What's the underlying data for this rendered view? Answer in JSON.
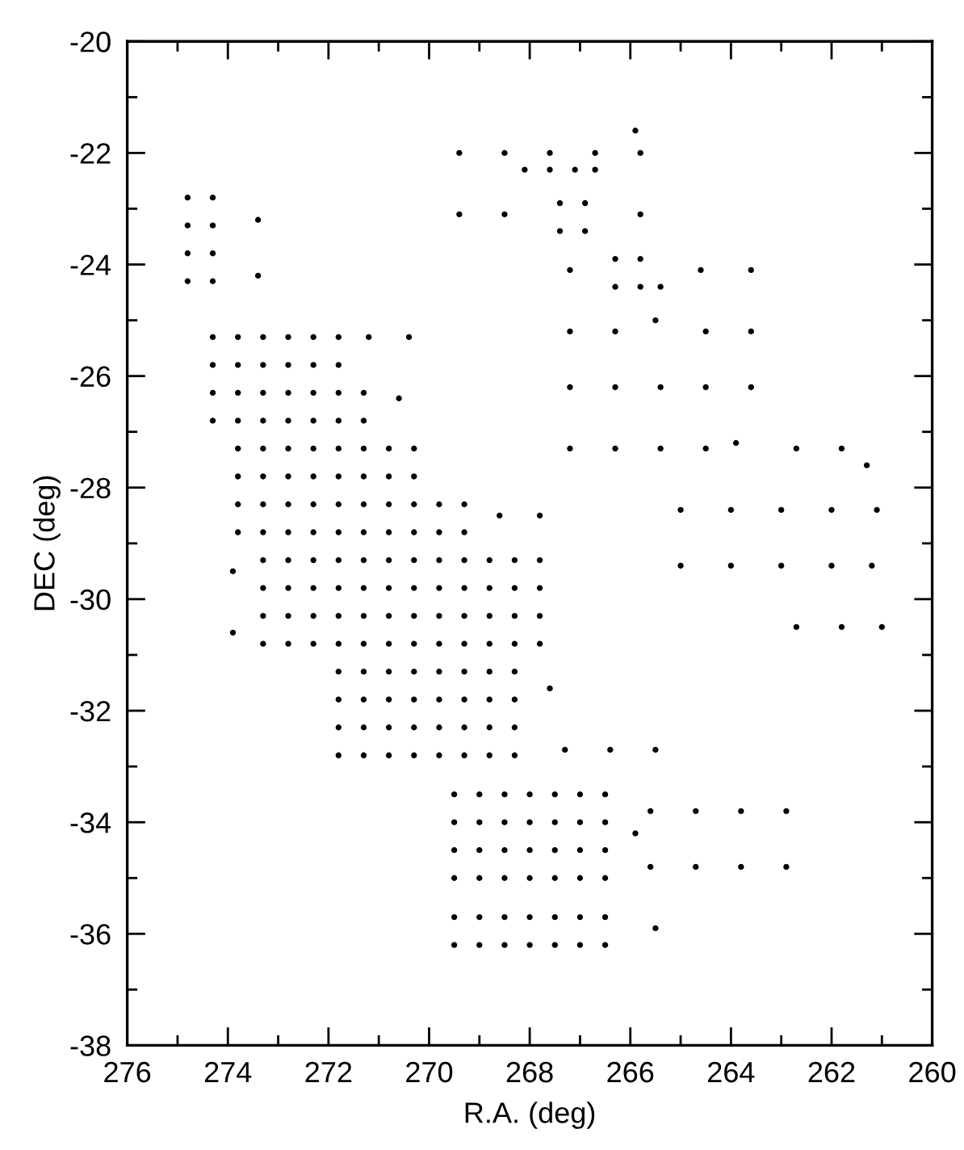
{
  "chart_data": {
    "type": "scatter",
    "xlabel": "R.A. (deg)",
    "ylabel": "DEC (deg)",
    "marker": "circle",
    "xlim": [
      276,
      260
    ],
    "ylim": [
      -38,
      -20
    ],
    "xticks": [
      276,
      {
        "value": 275,
        "label": null
      },
      274,
      {
        "value": 273,
        "label": null
      },
      272,
      {
        "value": 271,
        "label": null
      },
      270,
      {
        "value": 269,
        "label": null
      },
      268,
      {
        "value": 267,
        "label": null
      },
      266,
      {
        "value": 265,
        "label": null
      },
      264,
      {
        "value": 263,
        "label": null
      },
      262,
      {
        "value": 261,
        "label": null
      },
      260
    ],
    "yticks": [
      -38,
      {
        "value": -37,
        "label": null
      },
      -36,
      {
        "value": -35,
        "label": null
      },
      -34,
      {
        "value": -33,
        "label": null
      },
      -32,
      {
        "value": -31,
        "label": null
      },
      -30,
      {
        "value": -29,
        "label": null
      },
      -28,
      {
        "value": -27,
        "label": null
      },
      -26,
      {
        "value": -25,
        "label": null
      },
      -24,
      {
        "value": -23,
        "label": null
      },
      -22,
      {
        "value": -21,
        "label": null
      },
      -20
    ],
    "series": [
      {
        "color": "#000000",
        "x": [
          274.8,
          274.3,
          274.8,
          274.3,
          274.8,
          274.3,
          274.8,
          274.3,
          274.3,
          273.8,
          273.3,
          272.8,
          272.3,
          271.8,
          274.3,
          273.8,
          273.3,
          272.8,
          272.3,
          271.8,
          274.3,
          273.8,
          273.3,
          272.8,
          272.3,
          271.8,
          271.3,
          274.3,
          273.8,
          273.3,
          272.8,
          272.3,
          271.8,
          271.3,
          273.8,
          273.3,
          272.8,
          272.3,
          271.8,
          271.3,
          270.8,
          270.3,
          273.8,
          273.3,
          272.8,
          272.3,
          271.8,
          271.3,
          270.8,
          270.3,
          273.8,
          273.3,
          272.8,
          272.3,
          271.8,
          271.3,
          270.8,
          270.3,
          269.8,
          269.3,
          273.8,
          273.3,
          272.8,
          272.3,
          271.8,
          271.3,
          270.8,
          270.3,
          269.8,
          269.3
        ],
        "values": [
          -22.8,
          -22.8,
          -23.3,
          -23.3,
          -23.8,
          -23.8,
          -24.3,
          -24.3,
          -25.3,
          -25.3,
          -25.3,
          -25.3,
          -25.3,
          -25.3,
          -25.8,
          -25.8,
          -25.8,
          -25.8,
          -25.8,
          -25.8,
          -26.3,
          -26.3,
          -26.3,
          -26.3,
          -26.3,
          -26.3,
          -26.3,
          -26.8,
          -26.8,
          -26.8,
          -26.8,
          -26.8,
          -26.8,
          -26.8,
          -27.3,
          -27.3,
          -27.3,
          -27.3,
          -27.3,
          -27.3,
          -27.3,
          -27.3,
          -27.8,
          -27.8,
          -27.8,
          -27.8,
          -27.8,
          -27.8,
          -27.8,
          -27.8,
          -28.3,
          -28.3,
          -28.3,
          -28.3,
          -28.3,
          -28.3,
          -28.3,
          -28.3,
          -28.3,
          -28.3,
          -28.8,
          -28.8,
          -28.8,
          -28.8,
          -28.8,
          -28.8,
          -28.8,
          -28.8,
          -28.8,
          -28.8
        ]
      },
      {
        "color": "#000000",
        "x": [
          273.3,
          272.8,
          272.3,
          271.8,
          271.3,
          270.8,
          270.3,
          269.8,
          269.3,
          268.8,
          268.3,
          267.8,
          273.3,
          272.8,
          272.3,
          271.8,
          271.3,
          270.8,
          270.3,
          269.8,
          269.3,
          268.8,
          268.3,
          267.8,
          273.3,
          272.8,
          272.3,
          271.8,
          271.3,
          270.8,
          270.3,
          269.8,
          269.3,
          268.8,
          268.3,
          267.8,
          273.3,
          272.8,
          272.3,
          271.8,
          271.3,
          270.8,
          270.3,
          269.8,
          269.3,
          268.8,
          268.3,
          267.8,
          271.8,
          271.3,
          270.8,
          270.3,
          269.8,
          269.3,
          268.8,
          268.3,
          271.8,
          271.3,
          270.8,
          270.3,
          269.8,
          269.3,
          268.8,
          268.3,
          271.8,
          271.3,
          270.8,
          270.3,
          269.8,
          269.3,
          268.8,
          268.3,
          271.8,
          271.3,
          270.8,
          270.3,
          269.8,
          269.3,
          268.8,
          268.3
        ],
        "values": [
          -29.3,
          -29.3,
          -29.3,
          -29.3,
          -29.3,
          -29.3,
          -29.3,
          -29.3,
          -29.3,
          -29.3,
          -29.3,
          -29.3,
          -29.8,
          -29.8,
          -29.8,
          -29.8,
          -29.8,
          -29.8,
          -29.8,
          -29.8,
          -29.8,
          -29.8,
          -29.8,
          -29.8,
          -30.3,
          -30.3,
          -30.3,
          -30.3,
          -30.3,
          -30.3,
          -30.3,
          -30.3,
          -30.3,
          -30.3,
          -30.3,
          -30.3,
          -30.8,
          -30.8,
          -30.8,
          -30.8,
          -30.8,
          -30.8,
          -30.8,
          -30.8,
          -30.8,
          -30.8,
          -30.8,
          -30.8,
          -31.3,
          -31.3,
          -31.3,
          -31.3,
          -31.3,
          -31.3,
          -31.3,
          -31.3,
          -31.8,
          -31.8,
          -31.8,
          -31.8,
          -31.8,
          -31.8,
          -31.8,
          -31.8,
          -32.3,
          -32.3,
          -32.3,
          -32.3,
          -32.3,
          -32.3,
          -32.3,
          -32.3,
          -32.8,
          -32.8,
          -32.8,
          -32.8,
          -32.8,
          -32.8,
          -32.8,
          -32.8
        ]
      },
      {
        "color": "#000000",
        "x": [
          269.5,
          269.0,
          268.5,
          268.0,
          267.5,
          267.0,
          266.5,
          269.5,
          269.0,
          268.5,
          268.0,
          267.5,
          267.0,
          266.5,
          269.5,
          269.0,
          268.5,
          268.0,
          267.5,
          267.0,
          266.5,
          269.5,
          269.0,
          268.5,
          268.0,
          267.5,
          267.0,
          266.5,
          269.5,
          269.0,
          268.5,
          268.0,
          267.5,
          267.0,
          266.5,
          269.5,
          269.0,
          268.5,
          268.0,
          267.5,
          267.0,
          266.5
        ],
        "values": [
          -33.5,
          -33.5,
          -33.5,
          -33.5,
          -33.5,
          -33.5,
          -33.5,
          -34.0,
          -34.0,
          -34.0,
          -34.0,
          -34.0,
          -34.0,
          -34.0,
          -34.5,
          -34.5,
          -34.5,
          -34.5,
          -34.5,
          -34.5,
          -34.5,
          -35.0,
          -35.0,
          -35.0,
          -35.0,
          -35.0,
          -35.0,
          -35.0,
          -35.7,
          -35.7,
          -35.7,
          -35.7,
          -35.7,
          -35.7,
          -35.7,
          -36.2,
          -36.2,
          -36.2,
          -36.2,
          -36.2,
          -36.2,
          -36.2
        ]
      },
      {
        "color": "#000000",
        "x": [
          273.4,
          273.4,
          271.2,
          270.4,
          270.6,
          268.6,
          267.8,
          273.9,
          273.9,
          267.6,
          267.3,
          266.4,
          265.5,
          265.6,
          264.7,
          263.8,
          262.9,
          265.6,
          264.7,
          263.8,
          262.9,
          265.9,
          265.5,
          269.4,
          268.5,
          267.6,
          266.7,
          265.8,
          265.9,
          268.1,
          267.6,
          267.1,
          266.7,
          269.4,
          268.5,
          265.8,
          267.4,
          266.9,
          267.4,
          266.9,
          267.2,
          264.6,
          263.6,
          266.3,
          265.8,
          266.3,
          265.8,
          265.4,
          267.2,
          266.3,
          265.5,
          264.5,
          263.6,
          267.2,
          266.3,
          265.4,
          264.5,
          263.6,
          267.2,
          266.3,
          265.4,
          264.5,
          263.9,
          262.7,
          261.8,
          261.3,
          265.0,
          264.0,
          263.0,
          262.0,
          261.1,
          265.0,
          264.0,
          263.0,
          262.0,
          261.2,
          262.7,
          261.8,
          261.0
        ],
        "values": [
          -23.2,
          -24.2,
          -25.3,
          -25.3,
          -26.4,
          -28.5,
          -28.5,
          -29.5,
          -30.6,
          -31.6,
          -32.7,
          -32.7,
          -32.7,
          -33.8,
          -33.8,
          -33.8,
          -33.8,
          -34.8,
          -34.8,
          -34.8,
          -34.8,
          -34.2,
          -35.9,
          -22.0,
          -22.0,
          -22.0,
          -22.0,
          -22.0,
          -21.6,
          -22.3,
          -22.3,
          -22.3,
          -22.3,
          -23.1,
          -23.1,
          -23.1,
          -22.9,
          -22.9,
          -23.4,
          -23.4,
          -24.1,
          -24.1,
          -24.1,
          -23.9,
          -23.9,
          -24.4,
          -24.4,
          -24.4,
          -25.2,
          -25.2,
          -25.0,
          -25.2,
          -25.2,
          -26.2,
          -26.2,
          -26.2,
          -26.2,
          -26.2,
          -27.3,
          -27.3,
          -27.3,
          -27.3,
          -27.2,
          -27.3,
          -27.3,
          -27.6,
          -28.4,
          -28.4,
          -28.4,
          -28.4,
          -28.4,
          -29.4,
          -29.4,
          -29.4,
          -29.4,
          -29.4,
          -30.5,
          -30.5,
          -30.5
        ]
      }
    ]
  }
}
